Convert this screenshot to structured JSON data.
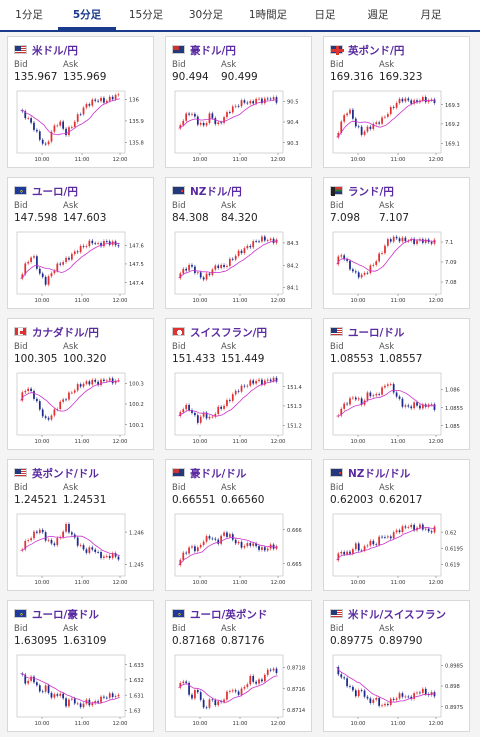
{
  "tabs": [
    "1分足",
    "5分足",
    "15分足",
    "30分足",
    "1時間足",
    "日足",
    "週足",
    "月足"
  ],
  "active_tab": 1,
  "labels": {
    "bid": "Bid",
    "ask": "Ask"
  },
  "colors": {
    "up": "#e03030",
    "down": "#1a2a8c",
    "ma": "#cc33cc",
    "accent": "#1a3a8c"
  },
  "cards": [
    {
      "pair": "米ドル/円",
      "bid": "135.967",
      "ask": "135.969",
      "flag": "us",
      "y_ticks": [
        "136",
        "135.9",
        "135.8"
      ],
      "y_range": [
        135.76,
        136.03
      ],
      "series": [
        135.95,
        135.92,
        135.88,
        135.82,
        135.78,
        135.86,
        135.9,
        135.84,
        135.88,
        135.93,
        135.97,
        135.99,
        136.0,
        135.99,
        136.01,
        136.02
      ]
    },
    {
      "pair": "豪ドル/円",
      "bid": "90.494",
      "ask": "90.499",
      "flag": "au",
      "y_ticks": [
        "90.5",
        "90.4",
        "90.3"
      ],
      "y_range": [
        90.26,
        90.54
      ],
      "series": [
        90.36,
        90.42,
        90.45,
        90.4,
        90.38,
        90.44,
        90.38,
        90.42,
        90.46,
        90.48,
        90.5,
        90.49,
        90.51,
        90.5,
        90.52,
        90.5
      ]
    },
    {
      "pair": "英ポンド/円",
      "bid": "169.316",
      "ask": "169.323",
      "flag": "gb",
      "y_ticks": [
        "169.3",
        "169.2",
        "169.1"
      ],
      "y_range": [
        169.06,
        169.36
      ],
      "series": [
        169.12,
        169.22,
        169.28,
        169.2,
        169.15,
        169.18,
        169.2,
        169.22,
        169.26,
        169.3,
        169.33,
        169.32,
        169.31,
        169.33,
        169.32,
        169.32
      ]
    },
    {
      "pair": "ユーロ/円",
      "bid": "147.598",
      "ask": "147.603",
      "flag": "eu",
      "y_ticks": [
        "147.6",
        "147.5",
        "147.4"
      ],
      "y_range": [
        147.35,
        147.66
      ],
      "series": [
        147.42,
        147.5,
        147.55,
        147.45,
        147.4,
        147.46,
        147.5,
        147.52,
        147.55,
        147.58,
        147.6,
        147.62,
        147.6,
        147.62,
        147.61,
        147.6
      ]
    },
    {
      "pair": "NZドル/円",
      "bid": "84.308",
      "ask": "84.320",
      "flag": "nz",
      "y_ticks": [
        "84.3",
        "84.2",
        "84.1"
      ],
      "y_range": [
        84.08,
        84.34
      ],
      "series": [
        84.15,
        84.18,
        84.2,
        84.16,
        84.14,
        84.17,
        84.2,
        84.19,
        84.22,
        84.25,
        84.27,
        84.29,
        84.31,
        84.32,
        84.31,
        84.31
      ]
    },
    {
      "pair": "ランド/円",
      "bid": "7.098",
      "ask": "7.107",
      "flag": "za",
      "y_ticks": [
        "7.1",
        "7.09",
        "7.08"
      ],
      "y_range": [
        7.075,
        7.104
      ],
      "series": [
        7.09,
        7.094,
        7.088,
        7.084,
        7.083,
        7.086,
        7.09,
        7.095,
        7.101,
        7.102,
        7.101,
        7.101,
        7.1,
        7.101,
        7.1,
        7.1
      ]
    },
    {
      "pair": "カナダドル/円",
      "bid": "100.305",
      "ask": "100.320",
      "flag": "ca",
      "y_ticks": [
        "100.3",
        "100.2",
        "100.1"
      ],
      "y_range": [
        100.06,
        100.34
      ],
      "series": [
        100.22,
        100.28,
        100.25,
        100.18,
        100.12,
        100.15,
        100.2,
        100.23,
        100.26,
        100.29,
        100.3,
        100.31,
        100.3,
        100.32,
        100.31,
        100.31
      ]
    },
    {
      "pair": "スイスフラン/円",
      "bid": "151.433",
      "ask": "151.449",
      "flag": "ch",
      "y_ticks": [
        "151.4",
        "151.3",
        "151.2"
      ],
      "y_range": [
        151.16,
        151.46
      ],
      "series": [
        151.24,
        151.3,
        151.28,
        151.22,
        151.26,
        151.23,
        151.28,
        151.3,
        151.34,
        151.38,
        151.4,
        151.42,
        151.43,
        151.42,
        151.44,
        151.43
      ]
    },
    {
      "pair": "ユーロ/ドル",
      "bid": "1.08553",
      "ask": "1.08557",
      "flag": "us",
      "y_ticks": [
        "1.086",
        "1.0855",
        "1.085"
      ],
      "y_range": [
        1.0848,
        1.0864
      ],
      "series": [
        1.0852,
        1.0855,
        1.0857,
        1.0858,
        1.0856,
        1.0859,
        1.0858,
        1.086,
        1.0862,
        1.0859,
        1.0856,
        1.0855,
        1.0856,
        1.0855,
        1.0856,
        1.0855
      ]
    },
    {
      "pair": "英ポンド/ドル",
      "bid": "1.24521",
      "ask": "1.24531",
      "flag": "us",
      "y_ticks": [
        "1.246",
        "1.245"
      ],
      "y_range": [
        1.2447,
        1.2465
      ],
      "series": [
        1.2454,
        1.2457,
        1.2459,
        1.2461,
        1.2458,
        1.2456,
        1.2458,
        1.2462,
        1.2459,
        1.2456,
        1.2454,
        1.2455,
        1.2453,
        1.2452,
        1.2453,
        1.2452
      ]
    },
    {
      "pair": "豪ドル/ドル",
      "bid": "0.66551",
      "ask": "0.66560",
      "flag": "au",
      "y_ticks": [
        "0.666",
        "0.665"
      ],
      "y_range": [
        0.6647,
        0.6664
      ],
      "series": [
        0.665,
        0.6653,
        0.6655,
        0.6654,
        0.6657,
        0.6658,
        0.6656,
        0.6659,
        0.6658,
        0.6656,
        0.6655,
        0.6656,
        0.6655,
        0.6654,
        0.6655,
        0.6655
      ]
    },
    {
      "pair": "NZドル/ドル",
      "bid": "0.62003",
      "ask": "0.62017",
      "flag": "nz",
      "y_ticks": [
        "0.62",
        "0.6195",
        "0.619"
      ],
      "y_range": [
        0.6187,
        0.6205
      ],
      "series": [
        0.6192,
        0.6194,
        0.6193,
        0.6196,
        0.6194,
        0.6197,
        0.6196,
        0.6199,
        0.6198,
        0.62,
        0.6201,
        0.6202,
        0.6201,
        0.6202,
        0.62,
        0.6201
      ]
    },
    {
      "pair": "ユーロ/豪ドル",
      "bid": "1.63095",
      "ask": "1.63109",
      "flag": "eu",
      "y_ticks": [
        "1.633",
        "1.632",
        "1.631",
        "1.63"
      ],
      "y_range": [
        1.6297,
        1.6335
      ],
      "series": [
        1.6325,
        1.6318,
        1.6322,
        1.6312,
        1.6315,
        1.6308,
        1.6312,
        1.6304,
        1.6308,
        1.6302,
        1.6306,
        1.6304,
        1.6307,
        1.6309,
        1.631,
        1.6309
      ]
    },
    {
      "pair": "ユーロ/英ポンド",
      "bid": "0.87168",
      "ask": "0.87176",
      "flag": "eu",
      "y_ticks": [
        "0.8718",
        "0.8716",
        "0.8714"
      ],
      "y_range": [
        0.87135,
        0.8719
      ],
      "series": [
        0.8716,
        0.8717,
        0.8715,
        0.8716,
        0.8714,
        0.8715,
        0.87145,
        0.8715,
        0.8716,
        0.87155,
        0.8716,
        0.8717,
        0.87165,
        0.8717,
        0.8718,
        0.87175
      ]
    },
    {
      "pair": "米ドル/スイスフラン",
      "bid": "0.89775",
      "ask": "0.89790",
      "flag": "us",
      "y_ticks": [
        "0.8985",
        "0.898",
        "0.8975"
      ],
      "y_range": [
        0.8973,
        0.8987
      ],
      "series": [
        0.8984,
        0.8982,
        0.898,
        0.8978,
        0.8979,
        0.8976,
        0.8977,
        0.8975,
        0.8976,
        0.8977,
        0.8978,
        0.8977,
        0.8978,
        0.8979,
        0.8978,
        0.8978
      ]
    }
  ],
  "x_ticks": [
    "10:00",
    "11:00",
    "12:00"
  ]
}
